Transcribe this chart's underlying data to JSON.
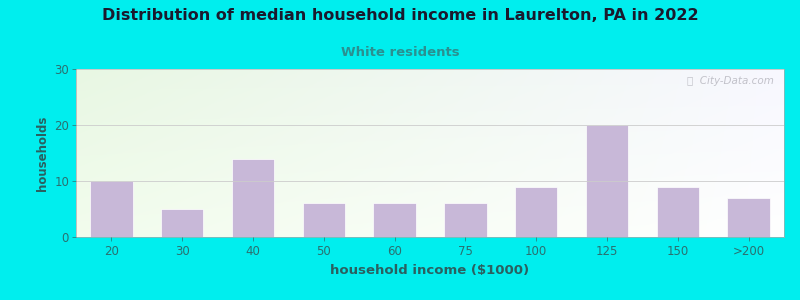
{
  "title": "Distribution of median household income in Laurelton, PA in 2022",
  "subtitle": "White residents",
  "xlabel": "household income ($1000)",
  "ylabel": "households",
  "background_outer": "#00EEEE",
  "bar_color": "#C8B8D8",
  "bar_edge_color": "#FFFFFF",
  "title_color": "#1a1a2e",
  "subtitle_color": "#2a9090",
  "axis_label_color": "#2a6060",
  "tick_color": "#2a7070",
  "ylim": [
    0,
    30
  ],
  "yticks": [
    0,
    10,
    20,
    30
  ],
  "categories": [
    "20",
    "30",
    "40",
    "50",
    "60",
    "75",
    "100",
    "125",
    "150",
    ">200"
  ],
  "values": [
    10,
    5,
    14,
    6,
    6,
    6,
    9,
    20,
    9,
    7
  ],
  "watermark": "ⓘ  City-Data.com",
  "plot_bg_topleft_color": [
    0.91,
    0.97,
    0.89
  ],
  "plot_bg_topright_color": [
    0.97,
    0.97,
    1.0
  ],
  "plot_bg_botleft_color": [
    0.95,
    0.99,
    0.93
  ],
  "plot_bg_botright_color": [
    1.0,
    1.0,
    1.0
  ]
}
